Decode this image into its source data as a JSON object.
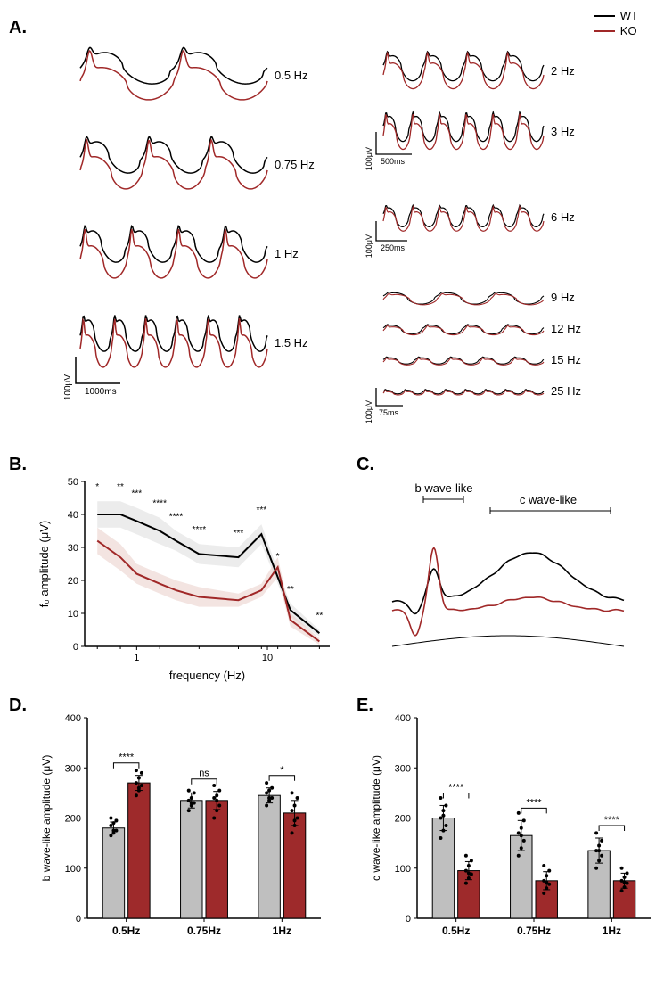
{
  "legend": {
    "wt": {
      "label": "WT",
      "color": "#000000"
    },
    "ko": {
      "label": "KO",
      "color": "#a02828"
    }
  },
  "colors": {
    "wt": "#000000",
    "ko": "#a02828",
    "wt_fill": "#d9d9d9",
    "ko_fill": "#e8c9c3",
    "bar_wt": "#bfbfbf",
    "bar_ko": "#9e2a2b",
    "axis": "#000000"
  },
  "panelA": {
    "label": "A.",
    "left": [
      {
        "freq": "0.5 Hz",
        "cycles": 2
      },
      {
        "freq": "0.75 Hz",
        "cycles": 3
      },
      {
        "freq": "1 Hz",
        "cycles": 4
      },
      {
        "freq": "1.5 Hz",
        "cycles": 6
      }
    ],
    "left_scale": {
      "y": "100μV",
      "x": "1000ms"
    },
    "right_top": [
      {
        "freq": "2 Hz",
        "cycles": 4
      },
      {
        "freq": "3 Hz",
        "cycles": 6
      }
    ],
    "right_top_scale": {
      "y": "100μV",
      "x": "500ms"
    },
    "right_mid": [
      {
        "freq": "6 Hz",
        "cycles": 6
      }
    ],
    "right_mid_scale": {
      "y": "100μV",
      "x": "250ms"
    },
    "right_bot": [
      {
        "freq": "9 Hz",
        "cycles": 3
      },
      {
        "freq": "12 Hz",
        "cycles": 4
      },
      {
        "freq": "15 Hz",
        "cycles": 5
      },
      {
        "freq": "25 Hz",
        "cycles": 8
      }
    ],
    "right_bot_scale": {
      "y": "100μV",
      "x": "75ms"
    }
  },
  "panelB": {
    "label": "B.",
    "ylabel": "f₀ amplitude (μV)",
    "xlabel": "frequency (Hz)",
    "xticks": [
      1,
      10
    ],
    "yticks": [
      0,
      10,
      20,
      30,
      40,
      50
    ],
    "ylim": [
      0,
      50
    ],
    "xlim_log": [
      0.4,
      30
    ],
    "series": {
      "wt": {
        "x": [
          0.5,
          0.75,
          1,
          1.5,
          2,
          3,
          6,
          9,
          12,
          15,
          25
        ],
        "y": [
          40,
          40,
          38,
          35,
          32,
          28,
          27,
          34,
          21,
          11,
          4
        ],
        "err": [
          4,
          4,
          4,
          4,
          3,
          3,
          3,
          3,
          2,
          2,
          1
        ]
      },
      "ko": {
        "x": [
          0.5,
          0.75,
          1,
          1.5,
          2,
          3,
          6,
          9,
          12,
          15,
          25
        ],
        "y": [
          32,
          27,
          22,
          19,
          17,
          15,
          14,
          17,
          24,
          8,
          1.5
        ],
        "err": [
          4,
          4,
          3,
          3,
          3,
          3,
          2,
          2,
          3,
          2,
          1
        ]
      }
    },
    "sig": [
      "*",
      "**",
      "***",
      "****",
      "****",
      "****",
      "***",
      "***",
      "*",
      "**",
      "**"
    ]
  },
  "panelC": {
    "label": "C.",
    "annot1": "b wave-like",
    "annot2": "c wave-like"
  },
  "panelD": {
    "label": "D.",
    "ylabel": "b wave-like amplitude (μV)",
    "yticks": [
      0,
      100,
      200,
      300,
      400
    ],
    "ylim": [
      0,
      400
    ],
    "groups": [
      "0.5Hz",
      "0.75Hz",
      "1Hz"
    ],
    "wt": {
      "mean": [
        180,
        235,
        245
      ],
      "err": [
        12,
        15,
        15
      ],
      "pts": [
        [
          165,
          170,
          175,
          185,
          190,
          195,
          200,
          175
        ],
        [
          215,
          225,
          230,
          235,
          240,
          250,
          255,
          230
        ],
        [
          225,
          235,
          240,
          250,
          255,
          260,
          270,
          240
        ]
      ]
    },
    "ko": {
      "mean": [
        270,
        235,
        210
      ],
      "err": [
        15,
        18,
        25
      ],
      "pts": [
        [
          245,
          255,
          265,
          270,
          280,
          290,
          295,
          260
        ],
        [
          200,
          215,
          225,
          240,
          245,
          255,
          265,
          235
        ],
        [
          170,
          185,
          200,
          215,
          225,
          240,
          250,
          195
        ]
      ]
    },
    "sig": [
      "****",
      "ns",
      "*"
    ]
  },
  "panelE": {
    "label": "E.",
    "ylabel": "c wave-like amplitude (μV)",
    "yticks": [
      0,
      100,
      200,
      300,
      400
    ],
    "ylim": [
      0,
      400
    ],
    "groups": [
      "0.5Hz",
      "0.75Hz",
      "1Hz"
    ],
    "wt": {
      "mean": [
        200,
        165,
        135
      ],
      "err": [
        25,
        30,
        25
      ],
      "pts": [
        [
          160,
          175,
          185,
          200,
          215,
          225,
          240,
          205
        ],
        [
          125,
          140,
          155,
          170,
          180,
          195,
          210,
          165
        ],
        [
          100,
          115,
          125,
          135,
          145,
          155,
          170,
          135
        ]
      ]
    },
    "ko": {
      "mean": [
        95,
        75,
        75
      ],
      "err": [
        18,
        18,
        15
      ],
      "pts": [
        [
          70,
          80,
          88,
          95,
          105,
          115,
          125,
          90
        ],
        [
          50,
          60,
          68,
          75,
          85,
          95,
          105,
          72
        ],
        [
          55,
          62,
          70,
          75,
          82,
          90,
          100,
          72
        ]
      ]
    },
    "sig": [
      "****",
      "****",
      "****"
    ]
  }
}
